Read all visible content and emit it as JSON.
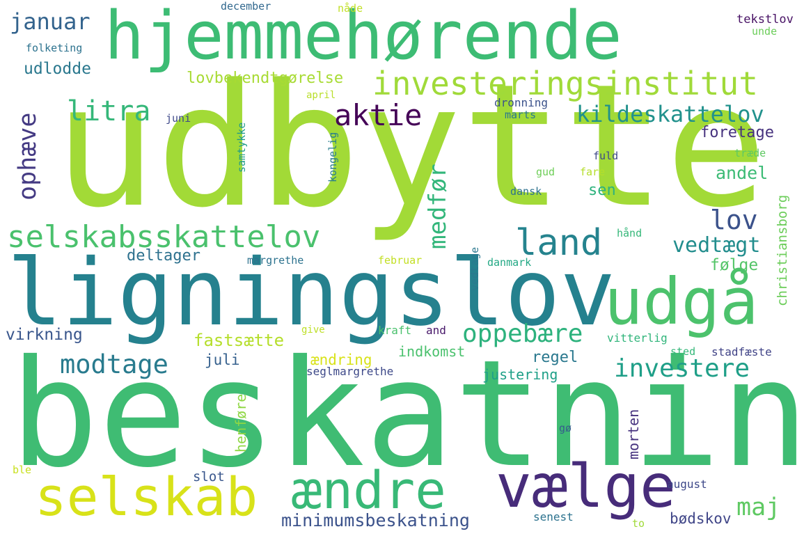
{
  "words": [
    {
      "text": "udbytte",
      "color": "#a2da37"
    },
    {
      "text": "beskatning",
      "color": "#3fbc73"
    },
    {
      "text": "ligningslov",
      "color": "#25818e"
    },
    {
      "text": "hjemmehørende",
      "color": "#3dbc74"
    },
    {
      "text": "udgå",
      "color": "#4cc26c"
    },
    {
      "text": "vælge",
      "color": "#472c7a"
    },
    {
      "text": "selskab",
      "color": "#d8e219"
    },
    {
      "text": "ændre",
      "color": "#38b977"
    },
    {
      "text": "investeringsinstitut",
      "color": "#a0da39"
    },
    {
      "text": "selskabsskattelov",
      "color": "#4ac16d"
    },
    {
      "text": "land",
      "color": "#25838e"
    },
    {
      "text": "aktie",
      "color": "#450457"
    },
    {
      "text": "kildeskattelov",
      "color": "#21918c"
    },
    {
      "text": "litra",
      "color": "#35b779"
    },
    {
      "text": "modtage",
      "color": "#297b8e"
    },
    {
      "text": "oppebære",
      "color": "#2db27d"
    },
    {
      "text": "investere",
      "color": "#1f9f88"
    },
    {
      "text": "ophæve",
      "color": "#443a83"
    },
    {
      "text": "medfør",
      "color": "#32b67a"
    },
    {
      "text": "lov",
      "color": "#3b528b"
    },
    {
      "text": "vedtægt",
      "color": "#228d8d"
    },
    {
      "text": "januar",
      "color": "#33638d"
    },
    {
      "text": "minimumsbeskatning",
      "color": "#3b528b"
    },
    {
      "text": "maj",
      "color": "#5ec962"
    },
    {
      "text": "lovbekendtgørelse",
      "color": "#a8db34"
    },
    {
      "text": "fastsætte",
      "color": "#b5de2b"
    },
    {
      "text": "udlodde",
      "color": "#2a788e"
    },
    {
      "text": "andel",
      "color": "#3cbb75"
    },
    {
      "text": "virkning",
      "color": "#39568c"
    },
    {
      "text": "ændring",
      "color": "#d8e219"
    },
    {
      "text": "deltager",
      "color": "#2d718e"
    },
    {
      "text": "foretage",
      "color": "#46327e"
    },
    {
      "text": "følge",
      "color": "#54c568"
    },
    {
      "text": "regel",
      "color": "#2a788e"
    },
    {
      "text": "juli",
      "color": "#35608d"
    },
    {
      "text": "sen",
      "color": "#2db27d"
    },
    {
      "text": "indkomst",
      "color": "#4ac16d"
    },
    {
      "text": "justering",
      "color": "#1fa088"
    },
    {
      "text": "henføre",
      "color": "#8fd744"
    },
    {
      "text": "morten",
      "color": "#46327e"
    },
    {
      "text": "bødskov",
      "color": "#404688"
    },
    {
      "text": "christiansborg",
      "color": "#6ccd5a"
    },
    {
      "text": "folketing",
      "color": "#2c728e"
    },
    {
      "text": "december",
      "color": "#31688e"
    },
    {
      "text": "nåde",
      "color": "#c0df25"
    },
    {
      "text": "tekstlov",
      "color": "#471164"
    },
    {
      "text": "unde",
      "color": "#6ccd5a"
    },
    {
      "text": "april",
      "color": "#b8de29"
    },
    {
      "text": "juni",
      "color": "#3e4989"
    },
    {
      "text": "dronning",
      "color": "#3b528b"
    },
    {
      "text": "marts",
      "color": "#2a788e"
    },
    {
      "text": "samtykke",
      "color": "#1f9a8a"
    },
    {
      "text": "kongelig",
      "color": "#287d8e"
    },
    {
      "text": "træde",
      "color": "#5ec962"
    },
    {
      "text": "fuld",
      "color": "#3e4989"
    },
    {
      "text": "gud",
      "color": "#6ece58"
    },
    {
      "text": "fare",
      "color": "#b5de2b"
    },
    {
      "text": "dansk",
      "color": "#2d718e"
    },
    {
      "text": "hånd",
      "color": "#35b779"
    },
    {
      "text": "margrethe",
      "color": "#2c728e"
    },
    {
      "text": "februar",
      "color": "#c2df23"
    },
    {
      "text": "danmark",
      "color": "#22a884"
    },
    {
      "text": "vedtage",
      "color": "#2a788e"
    },
    {
      "text": "give",
      "color": "#bddf26"
    },
    {
      "text": "kraft",
      "color": "#4ac16d"
    },
    {
      "text": "and",
      "color": "#48186a"
    },
    {
      "text": "vitterlig",
      "color": "#31b57b"
    },
    {
      "text": "sted",
      "color": "#35b779"
    },
    {
      "text": "stadfæste",
      "color": "#414487"
    },
    {
      "text": "seglmargrethe",
      "color": "#3e4989"
    },
    {
      "text": "gø",
      "color": "#365c8d"
    },
    {
      "text": "ble",
      "color": "#c8e020"
    },
    {
      "text": "slot",
      "color": "#39568c"
    },
    {
      "text": "august",
      "color": "#3e4989"
    },
    {
      "text": "senest",
      "color": "#2c728e"
    },
    {
      "text": "to",
      "color": "#a0da39"
    }
  ]
}
